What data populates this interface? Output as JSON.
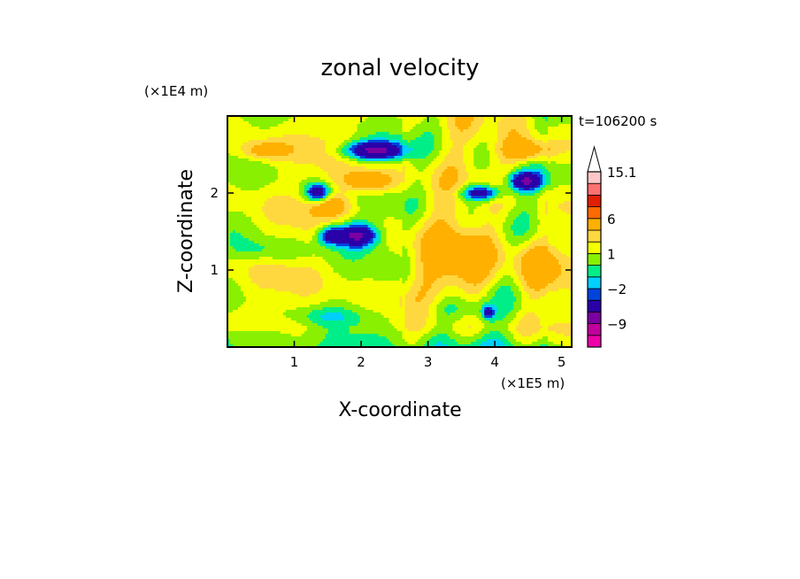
{
  "chart_data": {
    "type": "heatmap",
    "title": "zonal velocity",
    "time_label": "t=106200 s",
    "x_axis": {
      "label": "X-coordinate",
      "multiplier": "(×1E5 m)",
      "range": [
        0,
        5.15
      ],
      "ticks": [
        1,
        2,
        3,
        4,
        5
      ],
      "tick_labels": [
        "1",
        "2",
        "3",
        "4",
        "5"
      ]
    },
    "y_axis": {
      "label": "Z-coordinate",
      "multiplier": "(×1E4 m)",
      "range": [
        0,
        3.0
      ],
      "ticks": [
        1,
        2
      ],
      "tick_labels": [
        "1",
        "2"
      ]
    },
    "colorbar": {
      "levels": [
        -15,
        -12,
        -9,
        -6,
        -3,
        -2,
        -1,
        0,
        1,
        2,
        3,
        6,
        9,
        12,
        15.1
      ],
      "colors": [
        "#ee00aa",
        "#c0009c",
        "#7a00a0",
        "#2a00a8",
        "#0044dd",
        "#00d0ff",
        "#00ee88",
        "#88f000",
        "#f4ff00",
        "#ffd840",
        "#ffb000",
        "#ff6a00",
        "#e02000",
        "#ff7070",
        "#ffc8c8"
      ],
      "labels": [
        {
          "value": 15.1,
          "text": "15.1"
        },
        {
          "value": 6,
          "text": "6"
        },
        {
          "value": 1,
          "text": "1"
        },
        {
          "value": -2,
          "text": "−2"
        },
        {
          "value": -9,
          "text": "−9"
        }
      ]
    },
    "features": [
      {
        "x": 2.2,
        "z": 2.55,
        "value": -8,
        "sx": 0.45,
        "sz": 0.12
      },
      {
        "x": 1.35,
        "z": 2.0,
        "value": -7,
        "sx": 0.18,
        "sz": 0.12
      },
      {
        "x": 1.95,
        "z": 1.45,
        "value": -8,
        "sx": 0.28,
        "sz": 0.15
      },
      {
        "x": 1.55,
        "z": 1.45,
        "value": -6,
        "sx": 0.18,
        "sz": 0.12
      },
      {
        "x": 3.8,
        "z": 2.0,
        "value": -6,
        "sx": 0.3,
        "sz": 0.1
      },
      {
        "x": 4.45,
        "z": 2.15,
        "value": -7,
        "sx": 0.25,
        "sz": 0.12
      },
      {
        "x": 2.1,
        "z": 2.15,
        "value": 4,
        "sx": 0.4,
        "sz": 0.14
      },
      {
        "x": 1.55,
        "z": 1.85,
        "value": 3,
        "sx": 0.3,
        "sz": 0.14
      },
      {
        "x": 4.5,
        "z": 2.55,
        "value": 4,
        "sx": 0.4,
        "sz": 0.15
      },
      {
        "x": 0.55,
        "z": 2.55,
        "value": 3,
        "sx": 0.35,
        "sz": 0.12
      },
      {
        "x": 3.5,
        "z": 1.1,
        "value": 3,
        "sx": 0.5,
        "sz": 0.5
      },
      {
        "x": 4.6,
        "z": 1.05,
        "value": 3,
        "sx": 0.35,
        "sz": 0.35
      },
      {
        "x": 0.6,
        "z": 1.25,
        "value": -1.5,
        "sx": 0.6,
        "sz": 0.15
      },
      {
        "x": 3.5,
        "z": 0.5,
        "value": -2.5,
        "sx": 0.6,
        "sz": 0.2
      },
      {
        "x": 0.4,
        "z": 0.15,
        "value": -1.5,
        "sx": 0.6,
        "sz": 0.12
      },
      {
        "x": 1.5,
        "z": 0.4,
        "value": -1.5,
        "sx": 0.5,
        "sz": 0.12
      },
      {
        "x": 3.9,
        "z": 0.45,
        "value": -5,
        "sx": 0.08,
        "sz": 0.08
      }
    ]
  }
}
